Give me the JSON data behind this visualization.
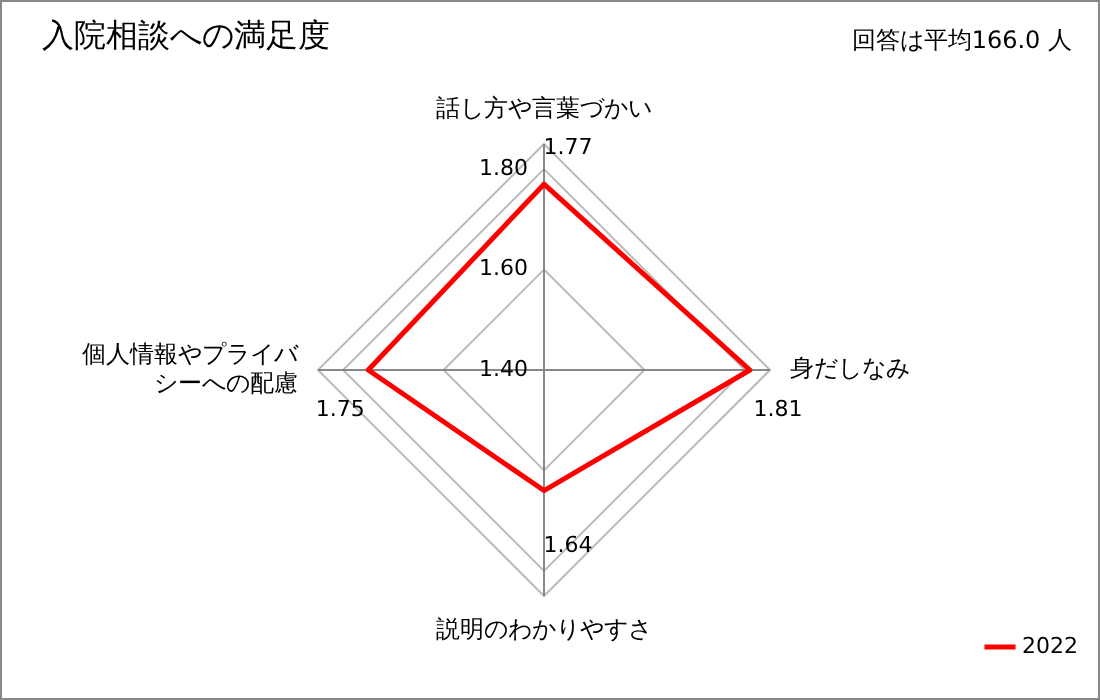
{
  "chart_data": {
    "type": "radar",
    "title": "入院相談への満足度",
    "annotations": [
      "回答は平均166.0 人"
    ],
    "categories": [
      "話し方や言葉づかい",
      "身だしなみ",
      "説明のわかりやすさ",
      "個人情報やプライバシーへの配慮"
    ],
    "series": [
      {
        "name": "2022",
        "color": "#ff0000",
        "values": [
          1.77,
          1.81,
          1.64,
          1.75
        ]
      }
    ],
    "ylim": [
      1.4,
      1.85
    ],
    "yticks": [
      {
        "value": 1.4,
        "label": "1.40"
      },
      {
        "value": 1.6,
        "label": "1.60"
      },
      {
        "value": 1.8,
        "label": "1.80"
      }
    ],
    "grid": true,
    "data_labels": true,
    "legend": "bottom right",
    "marker": "none",
    "line_style": "solid"
  }
}
